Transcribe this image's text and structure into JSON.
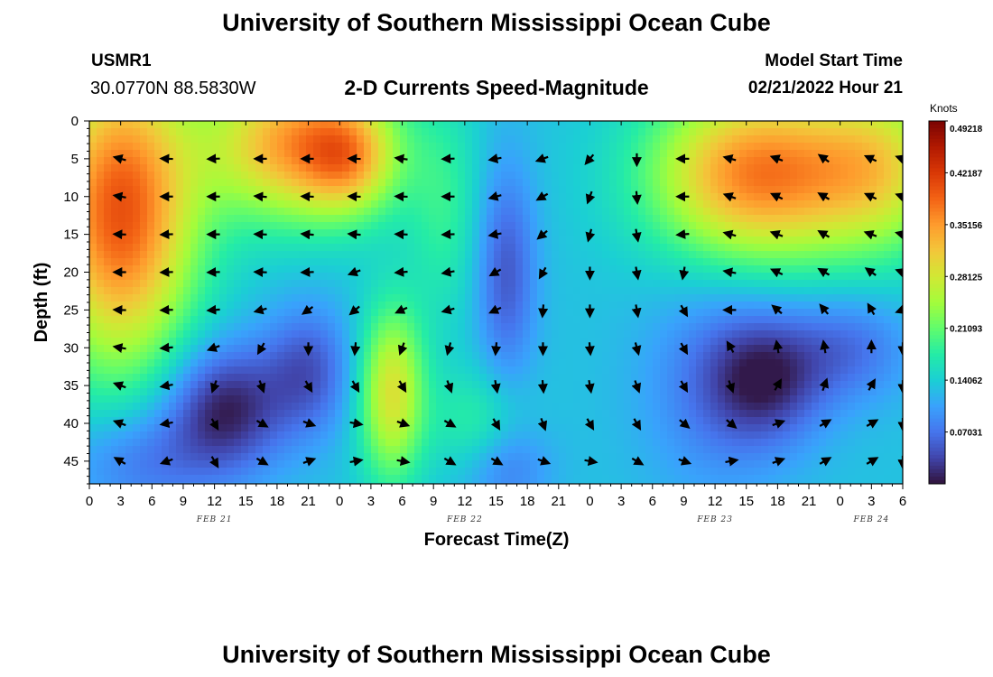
{
  "header": {
    "title": "University of Southern Mississippi Ocean Cube",
    "station_id": "USMR1",
    "coordinates": "30.0770N  88.5830W",
    "subtitle": "2-D Currents Speed-Magnitude",
    "model_start_label": "Model Start Time",
    "model_start_value": "02/21/2022 Hour 21"
  },
  "footer": {
    "title": "University of Southern Mississippi Ocean Cube"
  },
  "chart_data": {
    "type": "heatmap",
    "xlabel": "Forecast Time(Z)",
    "ylabel": "Depth (ft)",
    "x_hours_range": [
      0,
      78
    ],
    "y_range": [
      0,
      48
    ],
    "y_ticks": [
      0,
      5,
      10,
      15,
      20,
      25,
      30,
      35,
      40,
      45
    ],
    "x_ticks": [
      {
        "hour": 0,
        "label": "0"
      },
      {
        "hour": 3,
        "label": "3"
      },
      {
        "hour": 6,
        "label": "6"
      },
      {
        "hour": 9,
        "label": "9"
      },
      {
        "hour": 12,
        "label": "12"
      },
      {
        "hour": 15,
        "label": "15"
      },
      {
        "hour": 18,
        "label": "18"
      },
      {
        "hour": 21,
        "label": "21"
      },
      {
        "hour": 24,
        "label": "0"
      },
      {
        "hour": 27,
        "label": "3"
      },
      {
        "hour": 30,
        "label": "6"
      },
      {
        "hour": 33,
        "label": "9"
      },
      {
        "hour": 36,
        "label": "12"
      },
      {
        "hour": 39,
        "label": "15"
      },
      {
        "hour": 42,
        "label": "18"
      },
      {
        "hour": 45,
        "label": "21"
      },
      {
        "hour": 48,
        "label": "0"
      },
      {
        "hour": 51,
        "label": "3"
      },
      {
        "hour": 54,
        "label": "6"
      },
      {
        "hour": 57,
        "label": "9"
      },
      {
        "hour": 60,
        "label": "12"
      },
      {
        "hour": 63,
        "label": "15"
      },
      {
        "hour": 66,
        "label": "18"
      },
      {
        "hour": 69,
        "label": "21"
      },
      {
        "hour": 72,
        "label": "0"
      },
      {
        "hour": 75,
        "label": "3"
      },
      {
        "hour": 78,
        "label": "6"
      }
    ],
    "date_labels": [
      {
        "hour": 12,
        "label": "FEB 21"
      },
      {
        "hour": 36,
        "label": "FEB 22"
      },
      {
        "hour": 60,
        "label": "FEB 23"
      },
      {
        "hour": 75,
        "label": "FEB 24"
      }
    ],
    "colorbar": {
      "unit": "Knots",
      "min": 0,
      "max": 0.49218,
      "ticks": [
        "0.49218",
        "0.42187",
        "0.35156",
        "0.28125",
        "0.21093",
        "0.14062",
        "0.07031"
      ],
      "tick_values": [
        0.49218,
        0.42187,
        0.35156,
        0.28125,
        0.21093,
        0.14062,
        0.07031
      ],
      "colors": [
        "#30123b",
        "#4145ab",
        "#4675ed",
        "#39a2fc",
        "#1bcfd4",
        "#24eca6",
        "#61fc6c",
        "#a4fc3b",
        "#d1e834",
        "#f3c63a",
        "#fe9b2d",
        "#f36315",
        "#d93806",
        "#b11901",
        "#7a0402"
      ]
    },
    "speed_blobs": [
      {
        "hour": 3,
        "depth": 12,
        "hour_sigma": 5,
        "depth_sigma": 14,
        "value": 0.27
      },
      {
        "hour": 20,
        "depth": 3,
        "hour_sigma": 6,
        "depth_sigma": 7,
        "value": 0.22
      },
      {
        "hour": 25,
        "depth": 5,
        "hour_sigma": 3,
        "depth_sigma": 5,
        "value": 0.11
      },
      {
        "hour": 34,
        "depth": 12,
        "hour_sigma": 2.5,
        "depth_sigma": 10,
        "value": 0.05
      },
      {
        "hour": 40,
        "depth": 20,
        "hour_sigma": 2,
        "depth_sigma": 10,
        "value": -0.08
      },
      {
        "hour": 29,
        "depth": 36,
        "hour_sigma": 2.2,
        "depth_sigma": 8,
        "value": 0.16
      },
      {
        "hour": 64,
        "depth": 7,
        "hour_sigma": 7,
        "depth_sigma": 8,
        "value": 0.24
      },
      {
        "hour": 76,
        "depth": 6,
        "hour_sigma": 5,
        "depth_sigma": 8,
        "value": 0.14
      },
      {
        "hour": 13,
        "depth": 38,
        "hour_sigma": 4,
        "depth_sigma": 6,
        "value": -0.12
      },
      {
        "hour": 5,
        "depth": 45,
        "hour_sigma": 5,
        "depth_sigma": 5,
        "value": -0.06
      },
      {
        "hour": 21,
        "depth": 33,
        "hour_sigma": 3,
        "depth_sigma": 6,
        "value": -0.08
      },
      {
        "hour": 60,
        "depth": 35,
        "hour_sigma": 5,
        "depth_sigma": 10,
        "value": -0.05
      },
      {
        "hour": 65,
        "depth": 34,
        "hour_sigma": 4,
        "depth_sigma": 6,
        "value": -0.1
      },
      {
        "hour": 73,
        "depth": 30,
        "hour_sigma": 4,
        "depth_sigma": 5,
        "value": -0.06
      },
      {
        "hour": 37,
        "depth": 40,
        "hour_sigma": 3,
        "depth_sigma": 5,
        "value": 0.05
      },
      {
        "hour": 40,
        "depth": 46,
        "hour_sigma": 3,
        "depth_sigma": 4,
        "value": -0.05
      }
    ],
    "speed_base": 0.13,
    "arrows": {
      "hours": [
        3,
        7.5,
        12,
        16.5,
        21,
        25.5,
        30,
        34.5,
        39,
        43.5,
        48,
        52.5,
        57,
        61.5,
        66,
        70.5,
        75,
        78
      ],
      "depths": [
        5,
        10,
        15,
        20,
        25,
        30,
        35,
        40,
        45
      ],
      "angles_deg": [
        [
          165,
          178,
          182,
          180,
          180,
          178,
          172,
          182,
          190,
          200,
          230,
          270,
          180,
          165,
          160,
          145,
          155,
          160
        ],
        [
          170,
          180,
          180,
          175,
          178,
          178,
          178,
          180,
          195,
          210,
          250,
          275,
          180,
          160,
          155,
          150,
          155,
          160
        ],
        [
          178,
          182,
          180,
          178,
          175,
          175,
          178,
          182,
          190,
          220,
          255,
          280,
          185,
          165,
          160,
          150,
          160,
          165
        ],
        [
          180,
          182,
          182,
          178,
          182,
          200,
          185,
          190,
          210,
          240,
          270,
          280,
          260,
          170,
          155,
          150,
          145,
          160
        ],
        [
          178,
          182,
          185,
          195,
          215,
          220,
          205,
          195,
          205,
          265,
          270,
          280,
          300,
          180,
          140,
          130,
          120,
          200
        ],
        [
          170,
          185,
          200,
          240,
          270,
          265,
          250,
          255,
          265,
          270,
          275,
          285,
          300,
          120,
          100,
          100,
          90,
          270
        ],
        [
          160,
          190,
          250,
          290,
          300,
          300,
          300,
          290,
          280,
          275,
          280,
          290,
          300,
          290,
          60,
          70,
          60,
          270
        ],
        [
          160,
          190,
          300,
          330,
          340,
          350,
          340,
          330,
          300,
          290,
          300,
          300,
          320,
          320,
          20,
          30,
          30,
          270
        ],
        [
          150,
          200,
          300,
          330,
          20,
          10,
          350,
          330,
          330,
          340,
          350,
          330,
          340,
          10,
          20,
          30,
          30,
          270
        ]
      ]
    }
  }
}
